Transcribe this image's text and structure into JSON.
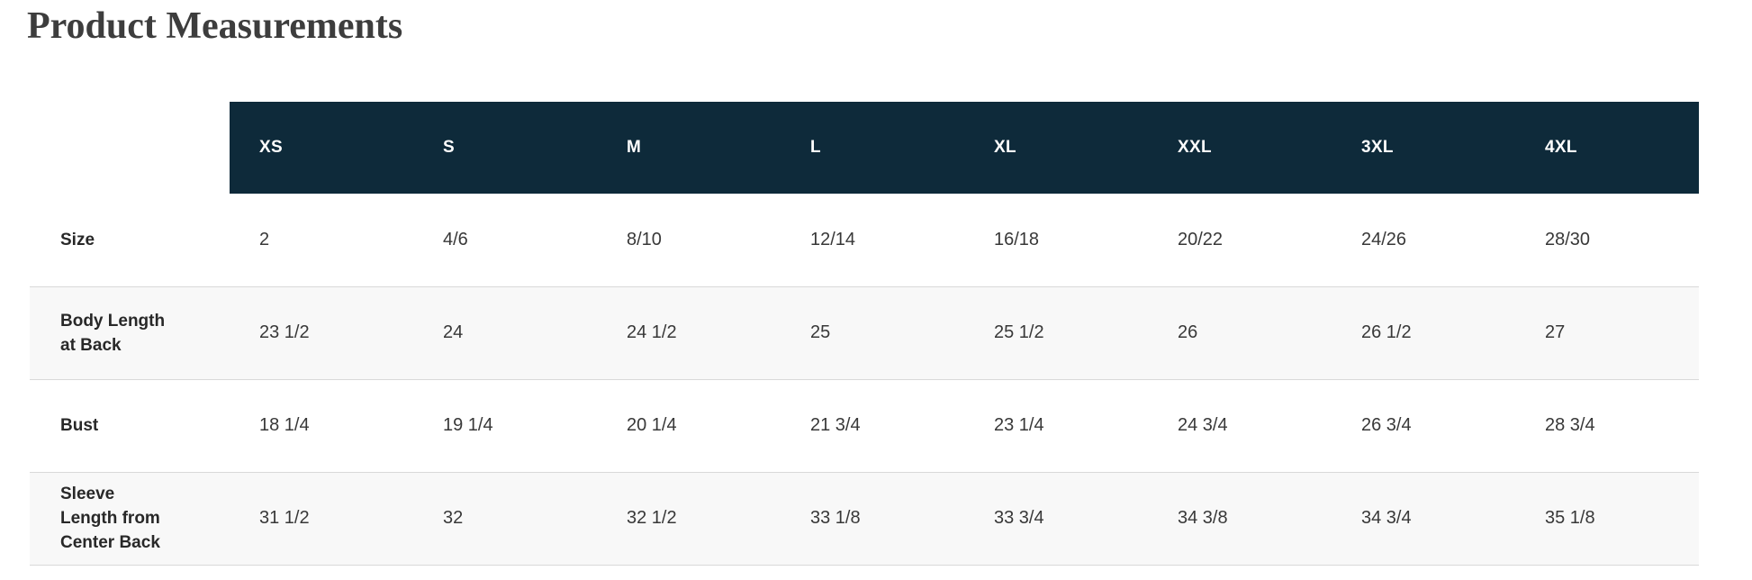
{
  "page": {
    "title": "Product Measurements"
  },
  "table": {
    "columns": [
      "XS",
      "S",
      "M",
      "L",
      "XL",
      "XXL",
      "3XL",
      "4XL"
    ],
    "rows": [
      {
        "label": "Size",
        "values": [
          "2",
          "4/6",
          "8/10",
          "12/14",
          "16/18",
          "20/22",
          "24/26",
          "28/30"
        ]
      },
      {
        "label": "Body Length at Back",
        "values": [
          "23 1/2",
          "24",
          "24 1/2",
          "25",
          "25 1/2",
          "26",
          "26 1/2",
          "27"
        ]
      },
      {
        "label": "Bust",
        "values": [
          "18 1/4",
          "19 1/4",
          "20 1/4",
          "21 3/4",
          "23 1/4",
          "24 3/4",
          "26 3/4",
          "28 3/4"
        ]
      },
      {
        "label": "Sleeve Length from Center Back",
        "values": [
          "31 1/2",
          "32",
          "32 1/2",
          "33 1/8",
          "33 3/4",
          "34 3/8",
          "34 3/4",
          "35 1/8"
        ]
      }
    ]
  },
  "colors": {
    "header_bg": "#0e2a3a",
    "header_text": "#ffffff",
    "row_alt_bg": "#f8f8f8",
    "divider": "#d9d9d9",
    "title_text": "#3d3d3d",
    "label_text": "#282828",
    "value_text": "#383838"
  }
}
